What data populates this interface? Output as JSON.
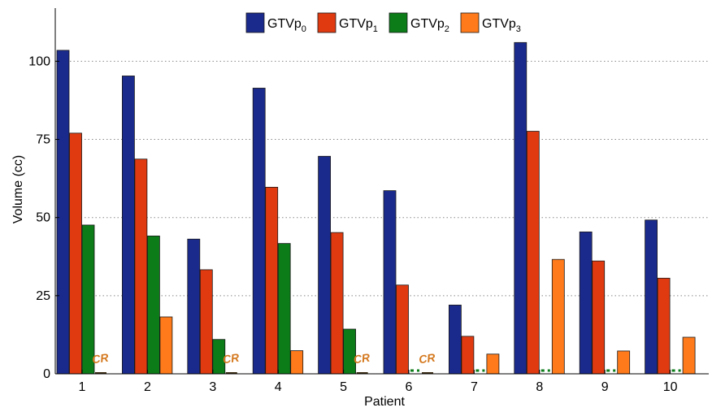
{
  "chart_data": {
    "type": "bar",
    "xlabel": "Patient",
    "ylabel": "Volume (cc)",
    "categories": [
      "1",
      "2",
      "3",
      "4",
      "5",
      "6",
      "7",
      "8",
      "9",
      "10"
    ],
    "ylim": [
      0,
      117
    ],
    "yticks": [
      0,
      25,
      50,
      75,
      100
    ],
    "grid": "horizontal-dotted",
    "legend_position": "top-center",
    "series": [
      {
        "name": "GTVp",
        "sub": "0",
        "color": "#1a2a8c",
        "values": [
          103.5,
          95.3,
          43.1,
          91.4,
          69.6,
          58.6,
          22.0,
          106.0,
          45.4,
          49.2
        ]
      },
      {
        "name": "GTVp",
        "sub": "1",
        "color": "#e03a10",
        "values": [
          77.0,
          68.7,
          33.3,
          59.7,
          45.2,
          28.4,
          12.0,
          77.6,
          36.1,
          30.6
        ]
      },
      {
        "name": "GTVp",
        "sub": "2",
        "color": "#0b7c18",
        "values": [
          47.6,
          44.1,
          11.0,
          41.7,
          14.3,
          0,
          0,
          0,
          0,
          0
        ]
      },
      {
        "name": "GTVp",
        "sub": "3",
        "color": "#ff7a1a",
        "values": [
          0,
          18.2,
          0,
          7.4,
          0,
          0,
          6.3,
          36.6,
          7.3,
          11.7
        ]
      }
    ],
    "annotations": [
      {
        "category": "1",
        "series_index": 3,
        "text": "CR",
        "color": "#d4781e"
      },
      {
        "category": "3",
        "series_index": 3,
        "text": "CR",
        "color": "#d4781e"
      },
      {
        "category": "5",
        "series_index": 3,
        "text": "CR",
        "color": "#d4781e"
      },
      {
        "category": "6",
        "series_index": 3,
        "text": "CR",
        "color": "#d4781e"
      }
    ],
    "zero_markers": [
      {
        "category": "6",
        "series_index": 2,
        "color": "#0b7c18"
      },
      {
        "category": "7",
        "series_index": 2,
        "color": "#0b7c18"
      },
      {
        "category": "8",
        "series_index": 2,
        "color": "#0b7c18"
      },
      {
        "category": "9",
        "series_index": 2,
        "color": "#0b7c18"
      },
      {
        "category": "10",
        "series_index": 2,
        "color": "#0b7c18"
      }
    ]
  }
}
